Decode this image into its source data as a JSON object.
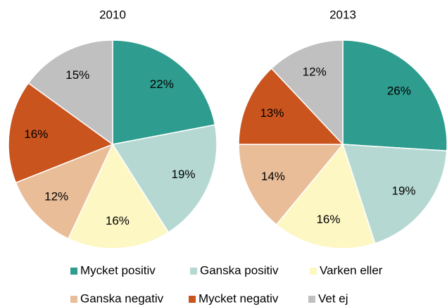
{
  "chart_data": [
    {
      "type": "pie",
      "title": "2010",
      "categories": [
        "Mycket positiv",
        "Ganska positiv",
        "Varken eller",
        "Ganska negativ",
        "Mycket negativ",
        "Vet ej"
      ],
      "values": [
        22,
        19,
        16,
        12,
        16,
        15
      ],
      "value_labels": [
        "22%",
        "19%",
        "16%",
        "12%",
        "16%",
        "15%"
      ],
      "colors": [
        "#2e9c8e",
        "#b5d9d2",
        "#fdf7c4",
        "#e9bd98",
        "#c9541e",
        "#c0c0c0"
      ]
    },
    {
      "type": "pie",
      "title": "2013",
      "categories": [
        "Mycket positiv",
        "Ganska positiv",
        "Varken eller",
        "Ganska negativ",
        "Mycket negativ",
        "Vet ej"
      ],
      "values": [
        26,
        19,
        16,
        14,
        13,
        12
      ],
      "value_labels": [
        "26%",
        "19%",
        "16%",
        "14%",
        "13%",
        "12%"
      ],
      "colors": [
        "#2e9c8e",
        "#b5d9d2",
        "#fdf7c4",
        "#e9bd98",
        "#c9541e",
        "#c0c0c0"
      ]
    }
  ]
}
